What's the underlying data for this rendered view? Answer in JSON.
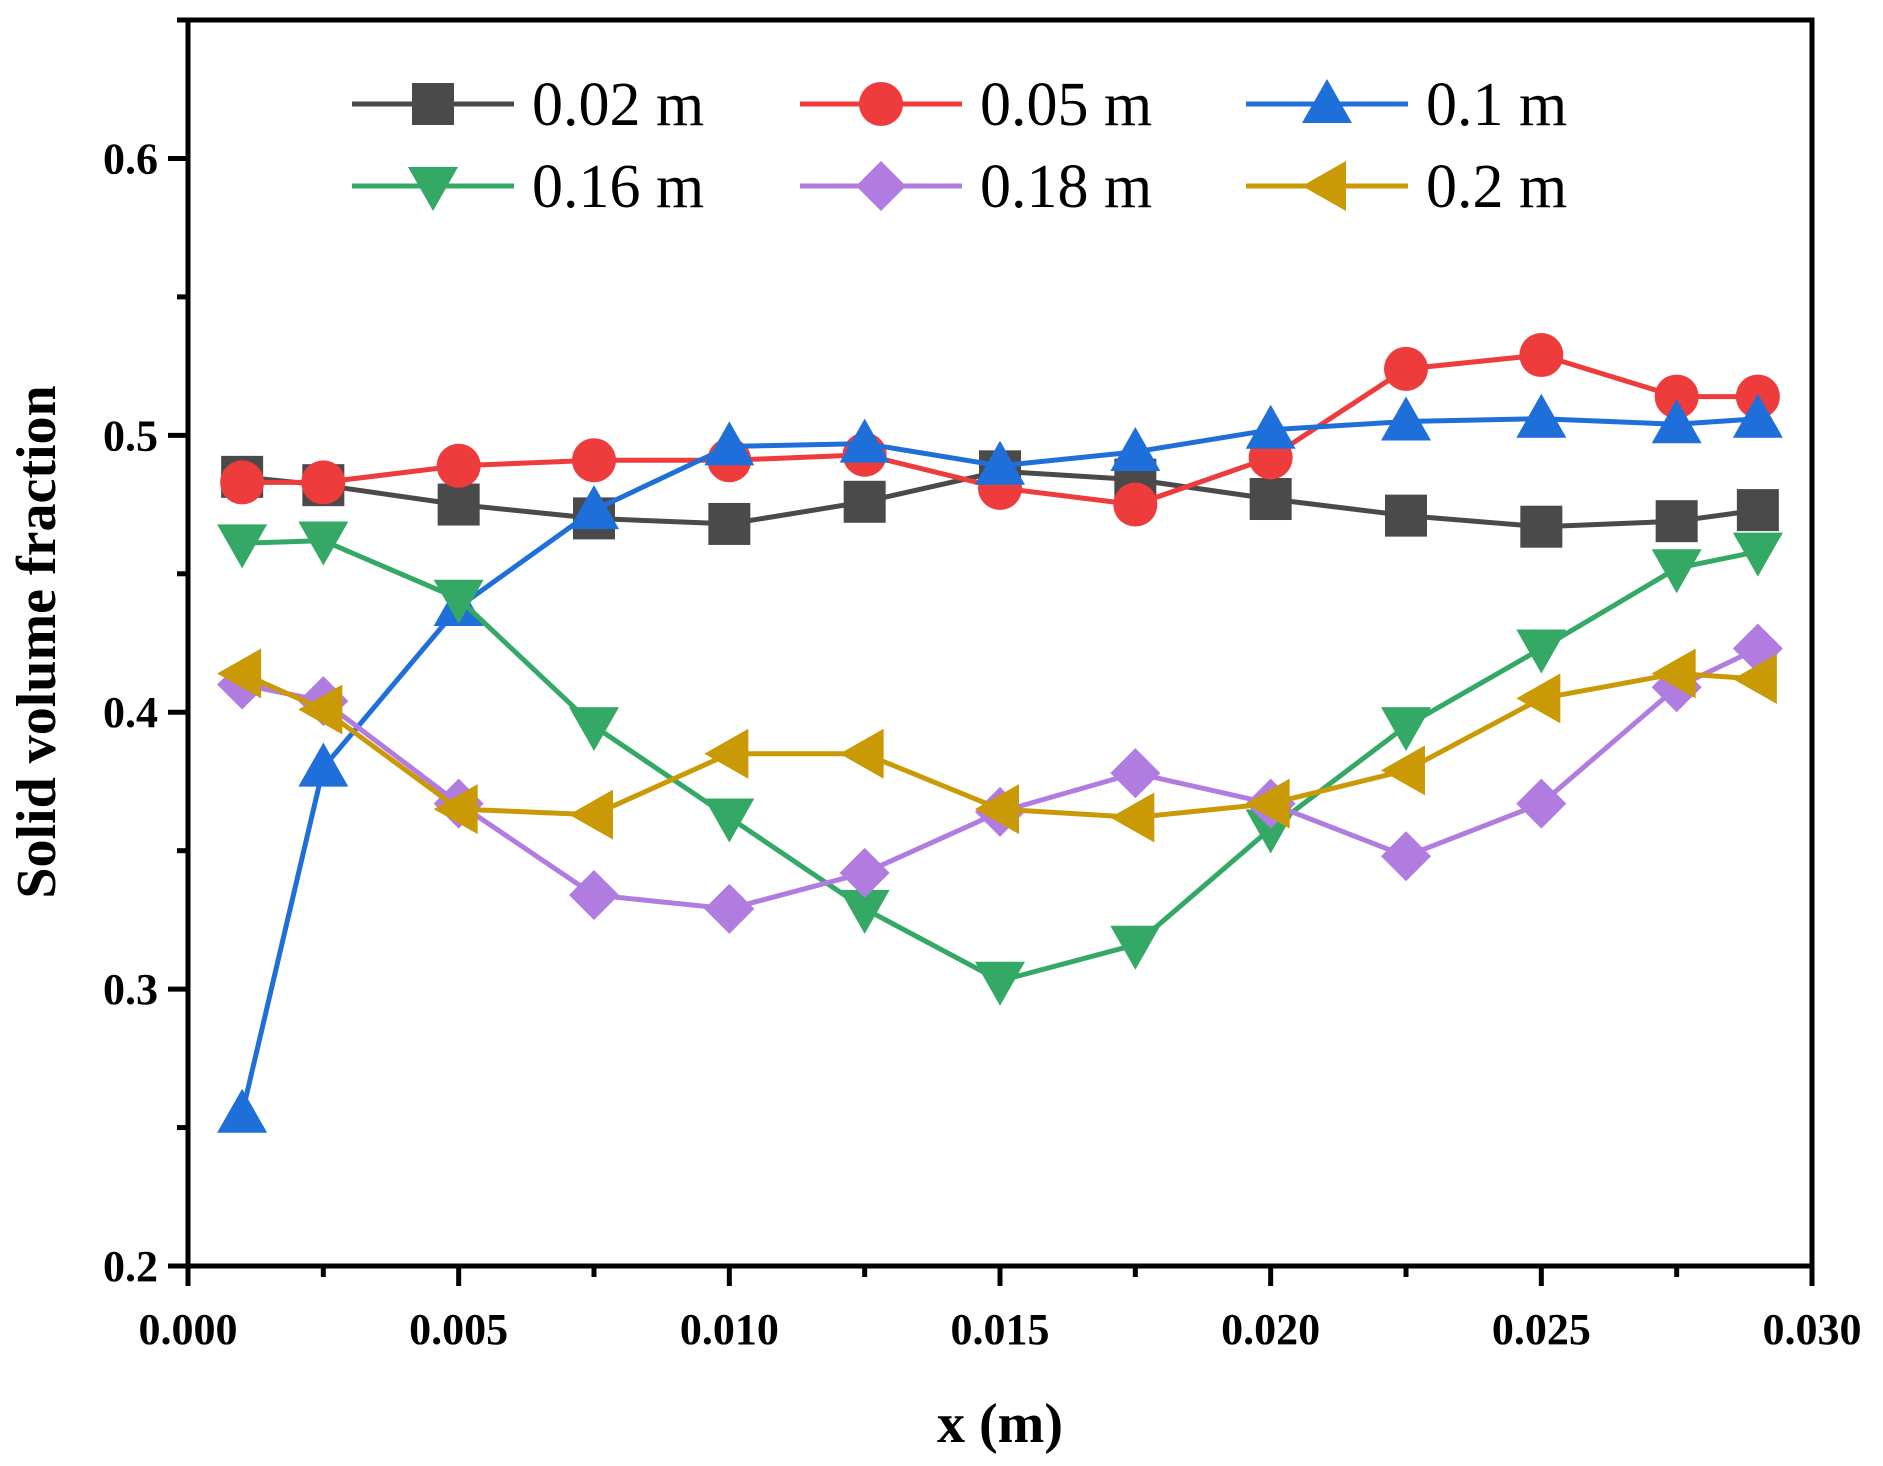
{
  "chart_data": {
    "type": "line",
    "title": "",
    "xlabel": "x (m)",
    "ylabel": "Solid volume fraction",
    "xlim": [
      0.0,
      0.03
    ],
    "ylim": [
      0.2,
      0.65
    ],
    "xticks": [
      0.0,
      0.005,
      0.01,
      0.015,
      0.02,
      0.025,
      0.03
    ],
    "xtick_labels": [
      "0.000",
      "0.005",
      "0.010",
      "0.015",
      "0.020",
      "0.025",
      "0.030"
    ],
    "yticks": [
      0.2,
      0.3,
      0.4,
      0.5,
      0.6
    ],
    "ytick_labels": [
      "0.2",
      "0.3",
      "0.4",
      "0.5",
      "0.6"
    ],
    "grid": false,
    "legend_position": "top",
    "x": [
      0.001,
      0.0025,
      0.005,
      0.0075,
      0.01,
      0.0125,
      0.015,
      0.0175,
      0.02,
      0.0225,
      0.025,
      0.0275,
      0.029
    ],
    "series": [
      {
        "name": "0.02 m",
        "color": "#4a4a4a",
        "marker": "square",
        "values": [
          0.485,
          0.482,
          0.475,
          0.47,
          0.468,
          0.476,
          0.487,
          0.484,
          0.477,
          0.471,
          0.467,
          0.469,
          0.473
        ]
      },
      {
        "name": "0.05 m",
        "color": "#ee3b3b",
        "marker": "circle",
        "values": [
          0.483,
          0.483,
          0.489,
          0.491,
          0.491,
          0.493,
          0.481,
          0.475,
          0.492,
          0.524,
          0.529,
          0.514,
          0.514
        ]
      },
      {
        "name": "0.1 m",
        "color": "#1e6fd9",
        "marker": "triangle-up",
        "values": [
          0.255,
          0.38,
          0.438,
          0.473,
          0.496,
          0.497,
          0.489,
          0.494,
          0.502,
          0.505,
          0.506,
          0.504,
          0.506
        ]
      },
      {
        "name": "0.16 m",
        "color": "#34a865",
        "marker": "triangle-down",
        "values": [
          0.461,
          0.462,
          0.441,
          0.395,
          0.362,
          0.329,
          0.303,
          0.316,
          0.358,
          0.395,
          0.423,
          0.452,
          0.458
        ]
      },
      {
        "name": "0.18 m",
        "color": "#b07ce0",
        "marker": "diamond",
        "values": [
          0.41,
          0.404,
          0.367,
          0.334,
          0.329,
          0.342,
          0.364,
          0.378,
          0.367,
          0.348,
          0.367,
          0.409,
          0.423
        ]
      },
      {
        "name": "0.2 m",
        "color": "#c99a06",
        "marker": "triangle-left",
        "values": [
          0.414,
          0.401,
          0.365,
          0.363,
          0.385,
          0.385,
          0.365,
          0.362,
          0.367,
          0.379,
          0.405,
          0.414,
          0.412
        ]
      }
    ]
  }
}
